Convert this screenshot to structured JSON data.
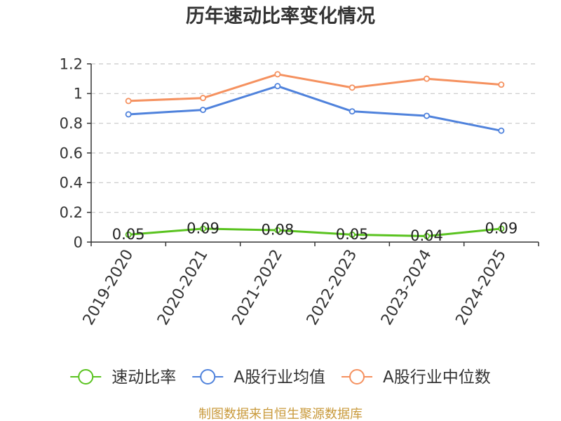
{
  "chart_data": {
    "type": "line",
    "title": "历年速动比率变化情况",
    "categories": [
      "2019-2020",
      "2020-2021",
      "2021-2022",
      "2022-2023",
      "2023-2024",
      "2024-2025"
    ],
    "ylim": [
      0,
      1.2
    ],
    "y_ticks": [
      0,
      0.2,
      0.4,
      0.6,
      0.8,
      1,
      1.2
    ],
    "grid": true,
    "legend_position": "bottom",
    "series": [
      {
        "name": "速动比率",
        "color": "#5ac320",
        "values": [
          0.05,
          0.09,
          0.08,
          0.05,
          0.04,
          0.09
        ],
        "show_labels": true
      },
      {
        "name": "A股行业均值",
        "color": "#4f82dc",
        "values": [
          0.86,
          0.89,
          1.05,
          0.88,
          0.85,
          0.75
        ],
        "show_labels": false
      },
      {
        "name": "A股行业中位数",
        "color": "#f5915f",
        "values": [
          0.95,
          0.97,
          1.13,
          1.04,
          1.1,
          1.06
        ],
        "show_labels": false
      }
    ]
  },
  "source_note": "制图数据来自恒生聚源数据库",
  "colors": {
    "title": "#333333",
    "axis": "#333333",
    "grid": "#c8c8c8",
    "source_note": "#c99a3c"
  }
}
